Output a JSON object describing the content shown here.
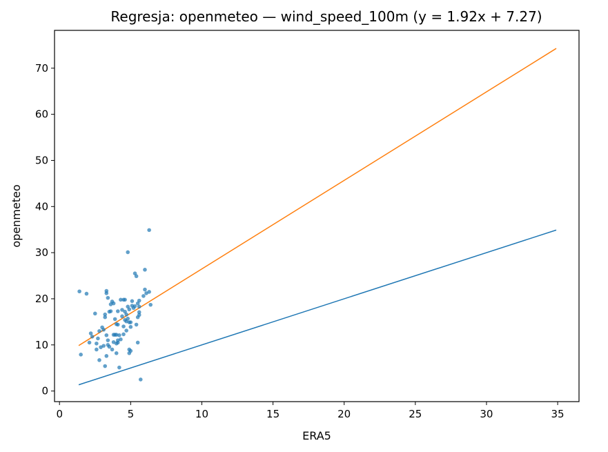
{
  "chart_data": {
    "type": "scatter",
    "title": "Regresja: openmeteo — wind_speed_100m (y = 1.92x + 7.27)",
    "xlabel": "ERA5",
    "ylabel": "openmeteo",
    "xlim": [
      -0.35,
      36.5
    ],
    "ylim": [
      -2.3,
      78.2
    ],
    "xticks": [
      0,
      5,
      10,
      15,
      20,
      25,
      30,
      35
    ],
    "yticks": [
      0,
      10,
      20,
      30,
      40,
      50,
      60,
      70
    ],
    "grid": false,
    "colors": {
      "points": "#1f77b4",
      "identity_line": "#1f77b4",
      "regression_line": "#ff7f0e"
    },
    "points": [
      [
        1.4,
        21.6
      ],
      [
        1.5,
        7.9
      ],
      [
        1.9,
        21.1
      ],
      [
        2.1,
        10.5
      ],
      [
        2.2,
        12.5
      ],
      [
        2.3,
        11.8
      ],
      [
        2.5,
        16.8
      ],
      [
        2.6,
        9.0
      ],
      [
        2.6,
        10.3
      ],
      [
        2.7,
        11.4
      ],
      [
        2.8,
        6.7
      ],
      [
        2.8,
        13.0
      ],
      [
        2.9,
        9.5
      ],
      [
        3.0,
        13.8
      ],
      [
        3.1,
        13.3
      ],
      [
        3.1,
        9.8
      ],
      [
        3.2,
        5.4
      ],
      [
        3.2,
        16.0
      ],
      [
        3.2,
        16.6
      ],
      [
        3.3,
        7.6
      ],
      [
        3.3,
        21.2
      ],
      [
        3.3,
        21.7
      ],
      [
        3.3,
        12.1
      ],
      [
        3.4,
        10.0
      ],
      [
        3.4,
        11.0
      ],
      [
        3.4,
        20.2
      ],
      [
        3.5,
        17.2
      ],
      [
        3.5,
        9.6
      ],
      [
        3.6,
        17.3
      ],
      [
        3.6,
        18.8
      ],
      [
        3.7,
        9.0
      ],
      [
        3.7,
        19.4
      ],
      [
        3.8,
        19.0
      ],
      [
        3.8,
        10.6
      ],
      [
        3.8,
        12.2
      ],
      [
        3.9,
        15.6
      ],
      [
        3.9,
        12.2
      ],
      [
        4.0,
        14.5
      ],
      [
        4.0,
        10.3
      ],
      [
        4.0,
        8.2
      ],
      [
        4.0,
        12.2
      ],
      [
        4.1,
        17.3
      ],
      [
        4.1,
        14.4
      ],
      [
        4.1,
        11.0
      ],
      [
        4.1,
        10.5
      ],
      [
        4.2,
        12.1
      ],
      [
        4.2,
        5.1
      ],
      [
        4.3,
        19.8
      ],
      [
        4.3,
        11.2
      ],
      [
        4.4,
        17.6
      ],
      [
        4.4,
        16.2
      ],
      [
        4.5,
        19.8
      ],
      [
        4.5,
        12.3
      ],
      [
        4.5,
        14.0
      ],
      [
        4.6,
        19.8
      ],
      [
        4.6,
        17.2
      ],
      [
        4.6,
        15.4
      ],
      [
        4.7,
        13.1
      ],
      [
        4.7,
        15.1
      ],
      [
        4.7,
        16.6
      ],
      [
        4.8,
        30.1
      ],
      [
        4.8,
        18.3
      ],
      [
        4.8,
        15.7
      ],
      [
        4.9,
        14.9
      ],
      [
        4.9,
        17.7
      ],
      [
        4.9,
        8.2
      ],
      [
        4.9,
        9.0
      ],
      [
        5.0,
        14.9
      ],
      [
        5.0,
        13.9
      ],
      [
        5.0,
        8.7
      ],
      [
        5.1,
        19.5
      ],
      [
        5.1,
        18.5
      ],
      [
        5.2,
        18.0
      ],
      [
        5.3,
        25.5
      ],
      [
        5.3,
        18.4
      ],
      [
        5.4,
        14.4
      ],
      [
        5.4,
        24.9
      ],
      [
        5.5,
        19.0
      ],
      [
        5.5,
        16.0
      ],
      [
        5.5,
        10.5
      ],
      [
        5.6,
        19.6
      ],
      [
        5.6,
        17.1
      ],
      [
        5.6,
        18.3
      ],
      [
        5.7,
        2.5
      ],
      [
        5.9,
        20.6
      ],
      [
        6.0,
        26.3
      ],
      [
        6.0,
        22.0
      ],
      [
        6.1,
        21.2
      ],
      [
        6.3,
        21.5
      ],
      [
        6.3,
        34.9
      ],
      [
        6.4,
        18.7
      ],
      [
        5.6,
        16.5
      ]
    ],
    "lines": [
      {
        "role": "identity",
        "x": [
          1.35,
          34.9
        ],
        "y": [
          1.35,
          34.9
        ]
      },
      {
        "role": "regression",
        "slope": 1.92,
        "intercept": 7.27,
        "x": [
          1.35,
          34.9
        ],
        "y": [
          9.86,
          74.28
        ]
      }
    ]
  }
}
